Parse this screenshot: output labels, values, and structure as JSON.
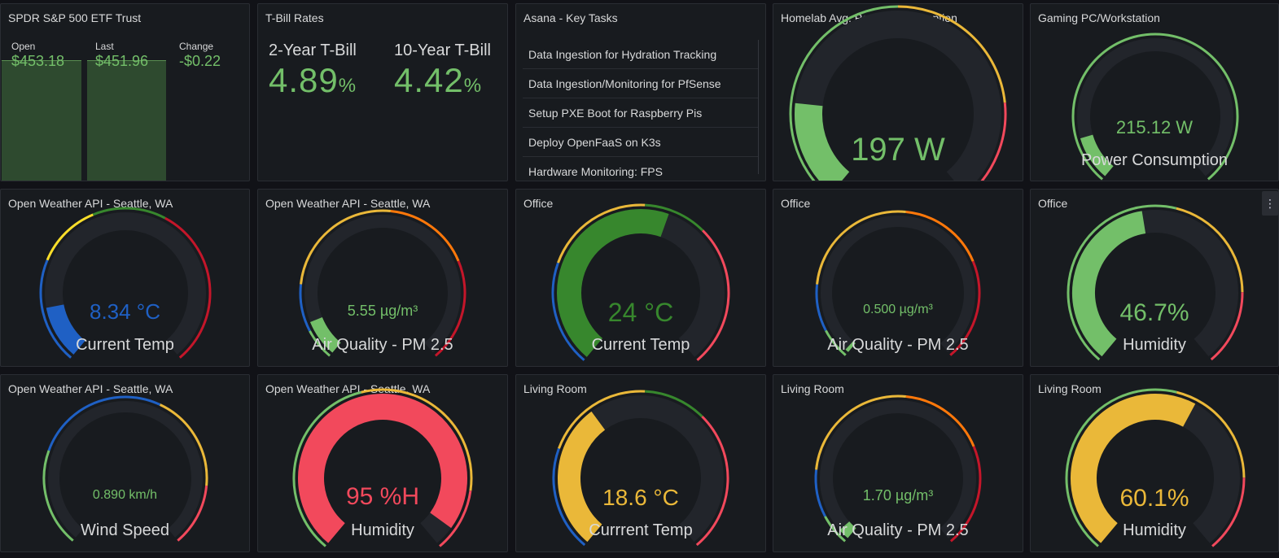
{
  "stock": {
    "title": "SPDR S&P 500 ETF Trust",
    "open_label": "Open",
    "open_value": "$453.18",
    "last_label": "Last",
    "last_value": "$451.96",
    "change_label": "Change",
    "change_value": "-$0.22"
  },
  "tbill": {
    "title": "T-Bill Rates",
    "rates": [
      {
        "label": "2-Year T-Bill",
        "value": "4.89",
        "unit": "%"
      },
      {
        "label": "10-Year T-Bill",
        "value": "4.42",
        "unit": "%"
      }
    ]
  },
  "asana": {
    "title": "Asana - Key Tasks",
    "tasks": [
      "Data Ingestion for Hydration Tracking",
      "Data Ingestion/Monitoring for PfSense",
      "Setup PXE Boot for Raspberry Pis",
      "Deploy OpenFaaS on K3s",
      "Hardware Monitoring: FPS"
    ]
  },
  "homelab": {
    "title": "Homelab Avg. Power Consumption",
    "value": "197 W",
    "fraction": 0.2,
    "color": "#73bf69"
  },
  "gaming": {
    "title": "Gaming PC/Workstation",
    "value": "215.12 W",
    "label": "Power Consumption",
    "fraction": 0.12,
    "color": "#73bf69"
  },
  "colors": {
    "blue": "#1f60c4",
    "green": "#73bf69",
    "darkgreen": "#37872d",
    "yellow": "#fade2a",
    "orange": "#ff780a",
    "amber": "#eab839",
    "red": "#f2495c",
    "darkred": "#c4162a",
    "track": "#22252b"
  },
  "row2": [
    {
      "title": "Open Weather API - Seattle, WA",
      "value": "8.34 °C",
      "label": "Current Temp",
      "fraction": 0.14,
      "color": "#1f60c4"
    },
    {
      "title": "Open Weather API - Seattle, WA",
      "value": "5.55 µg/m³",
      "label": "Air Quality - PM 2.5",
      "fraction": 0.1,
      "color": "#73bf69"
    },
    {
      "title": "Office",
      "value": "24 °C",
      "label": "Current Temp",
      "fraction": 0.57,
      "color": "#37872d"
    },
    {
      "title": "Office",
      "value": "0.500 µg/m³",
      "label": "Air Quality - PM 2.5",
      "fraction": 0.01,
      "color": "#73bf69"
    },
    {
      "title": "Office",
      "value": "46.7%",
      "label": "Humidity",
      "fraction": 0.467,
      "color": "#73bf69"
    }
  ],
  "row3": [
    {
      "title": "Open Weather API - Seattle, WA",
      "value": "0.890 km/h",
      "label": "Wind Speed",
      "fraction": 0.0,
      "color": "#73bf69"
    },
    {
      "title": "Open Weather API - Seattle, WA",
      "value": "95 %H",
      "label": "Humidity",
      "fraction": 0.95,
      "color": "#f2495c"
    },
    {
      "title": "Living Room",
      "value": "18.6 °C",
      "label": "Currrent Temp",
      "fraction": 0.37,
      "color": "#eab839"
    },
    {
      "title": "Living Room",
      "value": "1.70 µg/m³",
      "label": "Air Quality - PM 2.5",
      "fraction": 0.03,
      "color": "#73bf69"
    },
    {
      "title": "Living Room",
      "value": "60.1%",
      "label": "Humidity",
      "fraction": 0.601,
      "color": "#eab839"
    }
  ]
}
